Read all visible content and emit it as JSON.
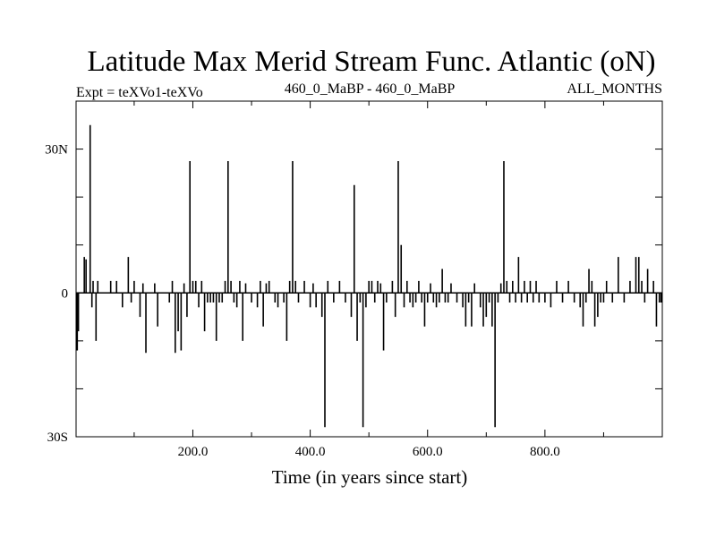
{
  "chart_data": {
    "type": "line",
    "title": "Latitude Max Merid Stream Func. Atlantic (oN)",
    "subtitle_left": "Expt = teXVo1-teXVo",
    "subtitle_center": "460_0_MaBP - 460_0_MaBP",
    "subtitle_right": "ALL_MONTHS",
    "xlabel": "Time (in years since start)",
    "ylabel": "",
    "xlim": [
      1,
      1000
    ],
    "ylim": [
      -30,
      40
    ],
    "x_ticks": [
      {
        "value": 200,
        "label": "200.0"
      },
      {
        "value": 400,
        "label": "400.0"
      },
      {
        "value": 600,
        "label": "600.0"
      },
      {
        "value": 800,
        "label": "800.0"
      }
    ],
    "y_ticks": [
      {
        "value": 30,
        "label": "30N"
      },
      {
        "value": 0,
        "label": "0"
      },
      {
        "value": -30,
        "label": "30S"
      }
    ],
    "baseline": 0,
    "events": [
      [
        3,
        -12
      ],
      [
        5,
        -8
      ],
      [
        15,
        7.5
      ],
      [
        18,
        7
      ],
      [
        25,
        35
      ],
      [
        28,
        -3
      ],
      [
        30,
        2.5
      ],
      [
        35,
        -10
      ],
      [
        38,
        2.5
      ],
      [
        60,
        2.5
      ],
      [
        70,
        2.5
      ],
      [
        80,
        -3
      ],
      [
        90,
        7.5
      ],
      [
        95,
        -2
      ],
      [
        100,
        2.5
      ],
      [
        110,
        -5
      ],
      [
        115,
        2
      ],
      [
        120,
        -12.5
      ],
      [
        135,
        2
      ],
      [
        140,
        -7
      ],
      [
        160,
        -2
      ],
      [
        165,
        2.5
      ],
      [
        170,
        -12.5
      ],
      [
        175,
        -8
      ],
      [
        180,
        -12
      ],
      [
        185,
        2
      ],
      [
        190,
        -5
      ],
      [
        195,
        27.5
      ],
      [
        200,
        2.5
      ],
      [
        205,
        2.5
      ],
      [
        210,
        -3
      ],
      [
        215,
        2.5
      ],
      [
        220,
        -8
      ],
      [
        225,
        -2
      ],
      [
        230,
        -2
      ],
      [
        235,
        -2
      ],
      [
        240,
        -10
      ],
      [
        245,
        -2
      ],
      [
        250,
        -2
      ],
      [
        255,
        2.5
      ],
      [
        260,
        27.5
      ],
      [
        265,
        2.5
      ],
      [
        270,
        -2
      ],
      [
        275,
        -3
      ],
      [
        280,
        2.5
      ],
      [
        285,
        -10
      ],
      [
        290,
        2
      ],
      [
        300,
        -2
      ],
      [
        310,
        -3
      ],
      [
        315,
        2.5
      ],
      [
        320,
        -7
      ],
      [
        325,
        2
      ],
      [
        330,
        2.5
      ],
      [
        340,
        -2
      ],
      [
        345,
        -3
      ],
      [
        355,
        -2
      ],
      [
        360,
        -10
      ],
      [
        365,
        2.5
      ],
      [
        370,
        27.5
      ],
      [
        375,
        2.5
      ],
      [
        380,
        -2
      ],
      [
        390,
        2.5
      ],
      [
        400,
        -3
      ],
      [
        405,
        2
      ],
      [
        410,
        -3
      ],
      [
        420,
        -5
      ],
      [
        425,
        -28
      ],
      [
        430,
        2.5
      ],
      [
        440,
        -2
      ],
      [
        450,
        2.5
      ],
      [
        460,
        -2
      ],
      [
        470,
        -5
      ],
      [
        475,
        22.5
      ],
      [
        480,
        -10
      ],
      [
        485,
        -2
      ],
      [
        490,
        -28
      ],
      [
        495,
        -3
      ],
      [
        500,
        2.5
      ],
      [
        505,
        2.5
      ],
      [
        510,
        -2
      ],
      [
        515,
        2.5
      ],
      [
        520,
        2
      ],
      [
        525,
        -12
      ],
      [
        530,
        -2
      ],
      [
        540,
        2.5
      ],
      [
        545,
        -5
      ],
      [
        550,
        27.5
      ],
      [
        555,
        10
      ],
      [
        560,
        -3
      ],
      [
        565,
        2.5
      ],
      [
        570,
        -2
      ],
      [
        575,
        -3
      ],
      [
        580,
        -2
      ],
      [
        585,
        2.5
      ],
      [
        590,
        -2
      ],
      [
        595,
        -7
      ],
      [
        600,
        -2
      ],
      [
        605,
        2
      ],
      [
        610,
        -2
      ],
      [
        615,
        -3
      ],
      [
        620,
        -2
      ],
      [
        625,
        5
      ],
      [
        630,
        -2
      ],
      [
        635,
        -2
      ],
      [
        640,
        2
      ],
      [
        650,
        -2
      ],
      [
        660,
        -3
      ],
      [
        665,
        -7
      ],
      [
        670,
        -2
      ],
      [
        675,
        -7
      ],
      [
        680,
        2
      ],
      [
        690,
        -3
      ],
      [
        695,
        -7
      ],
      [
        700,
        -5
      ],
      [
        705,
        -2
      ],
      [
        710,
        -7
      ],
      [
        715,
        -28
      ],
      [
        720,
        -2
      ],
      [
        725,
        2
      ],
      [
        730,
        27.5
      ],
      [
        735,
        2.5
      ],
      [
        740,
        -2
      ],
      [
        745,
        2.5
      ],
      [
        750,
        -2
      ],
      [
        755,
        7.5
      ],
      [
        760,
        -2
      ],
      [
        765,
        2.5
      ],
      [
        770,
        -2
      ],
      [
        775,
        2.5
      ],
      [
        780,
        -2
      ],
      [
        785,
        2.5
      ],
      [
        790,
        -2
      ],
      [
        800,
        -2
      ],
      [
        810,
        -3
      ],
      [
        820,
        2.5
      ],
      [
        830,
        -2
      ],
      [
        840,
        2.5
      ],
      [
        850,
        -2
      ],
      [
        860,
        -3
      ],
      [
        865,
        -7
      ],
      [
        870,
        -2
      ],
      [
        875,
        5
      ],
      [
        880,
        2.5
      ],
      [
        885,
        -7
      ],
      [
        890,
        -5
      ],
      [
        895,
        -2
      ],
      [
        900,
        -2
      ],
      [
        905,
        2.5
      ],
      [
        915,
        -2
      ],
      [
        925,
        7.5
      ],
      [
        935,
        -2
      ],
      [
        945,
        2.5
      ],
      [
        955,
        7.5
      ],
      [
        960,
        7.5
      ],
      [
        965,
        2.5
      ],
      [
        970,
        -2
      ],
      [
        975,
        5
      ],
      [
        985,
        2.5
      ],
      [
        990,
        -7
      ],
      [
        995,
        -2
      ],
      [
        998,
        -2
      ]
    ]
  }
}
